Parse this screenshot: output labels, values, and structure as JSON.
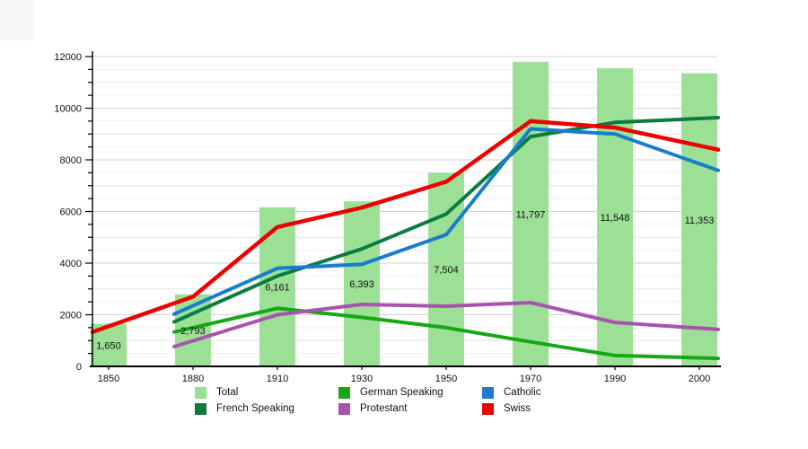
{
  "chart_data": {
    "type": "bar+line",
    "title": "",
    "xlabel": "",
    "ylabel": "",
    "categories": [
      "1850",
      "1880",
      "1910",
      "1930",
      "1950",
      "1970",
      "1990",
      "2000"
    ],
    "y_axis": {
      "min": 0,
      "max": 12000,
      "label_step": 2000,
      "minor_step": 500,
      "tick_labels": [
        "0",
        "2000",
        "4000",
        "6000",
        "8000",
        "10000",
        "12000"
      ],
      "grid": true
    },
    "bar_series": {
      "name": "Total",
      "color": "#9ce096",
      "values": [
        1650,
        2793,
        6161,
        6393,
        7504,
        11797,
        11548,
        11353
      ],
      "labels": [
        "1,650",
        "2,793",
        "6,161",
        "6,393",
        "7,504",
        "11,797",
        "11,548",
        "11,353"
      ]
    },
    "line_series": [
      {
        "name": "French Speaking",
        "color": "#0b7c41",
        "width": 4,
        "values": [
          null,
          2050,
          3500,
          4550,
          5900,
          8900,
          9450,
          9600
        ]
      },
      {
        "name": "German Speaking",
        "color": "#16a816",
        "width": 4,
        "values": [
          null,
          1500,
          2250,
          1900,
          1500,
          950,
          420,
          330
        ]
      },
      {
        "name": "Protestant",
        "color": "#a853b0",
        "width": 4,
        "values": [
          null,
          990,
          2000,
          2400,
          2330,
          2470,
          1700,
          1480
        ]
      },
      {
        "name": "Catholic",
        "color": "#1b7ccd",
        "width": 4,
        "values": [
          null,
          2350,
          3800,
          3950,
          5100,
          9200,
          9000,
          7850
        ]
      },
      {
        "name": "Swiss",
        "color": "#ee0000",
        "width": 4.5,
        "values": [
          1550,
          2700,
          5400,
          6150,
          7150,
          9500,
          9250,
          8550
        ]
      }
    ],
    "legend": [
      {
        "label": "Total",
        "color": "#9ce096"
      },
      {
        "label": "German Speaking",
        "color": "#16a816"
      },
      {
        "label": "Catholic",
        "color": "#1b7ccd"
      },
      {
        "label": "French Speaking",
        "color": "#0b7c41"
      },
      {
        "label": "Protestant",
        "color": "#a853b0"
      },
      {
        "label": "Swiss",
        "color": "#ee0000"
      }
    ],
    "legend_position": "bottom"
  }
}
